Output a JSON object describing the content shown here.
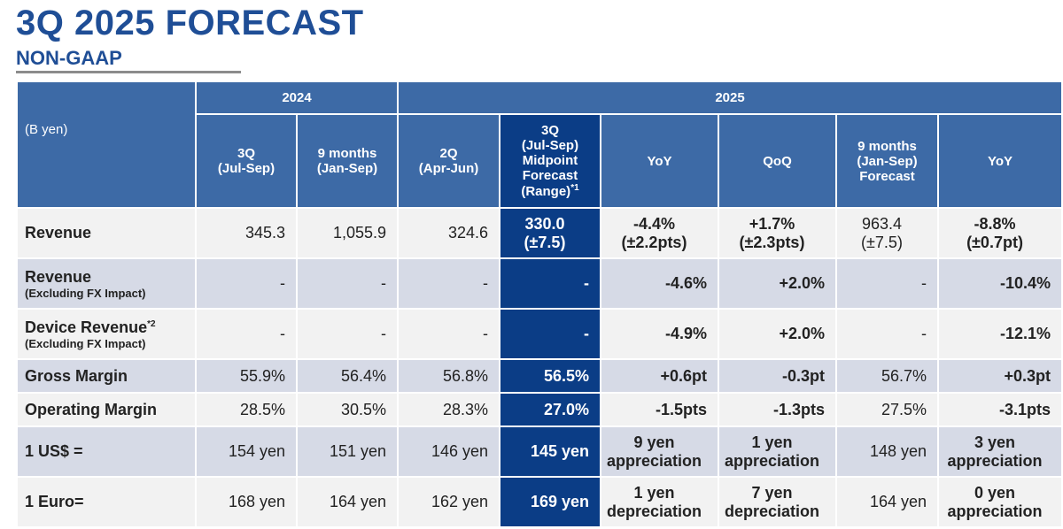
{
  "title": "3Q 2025 FORECAST",
  "subtitle": "NON-GAAP",
  "table": {
    "unit": "(B yen)",
    "years": [
      "2024",
      "2025"
    ],
    "columns": [
      [
        "3Q",
        "(Jul-Sep)"
      ],
      [
        "9 months",
        "(Jan-Sep)"
      ],
      [
        "2Q",
        "(Apr-Jun)"
      ],
      [
        "3Q",
        "(Jul-Sep)",
        "Midpoint",
        "Forecast",
        "(Range)",
        "*1"
      ],
      [
        "YoY"
      ],
      [
        "QoQ"
      ],
      [
        "9 months",
        "(Jan-Sep)",
        "Forecast"
      ],
      [
        "YoY"
      ]
    ],
    "rows": [
      {
        "label": "Revenue",
        "sublabel": "",
        "footnote": "",
        "values": [
          [
            "345.3"
          ],
          [
            "1,055.9"
          ],
          [
            "324.6"
          ],
          [
            "330.0",
            "(±7.5)"
          ],
          [
            "-4.4%",
            "(±2.2pts)"
          ],
          [
            "+1.7%",
            "(±2.3pts)"
          ],
          [
            "963.4",
            "(±7.5)"
          ],
          [
            "-8.8%",
            "(±0.7pt)"
          ]
        ]
      },
      {
        "label": "Revenue",
        "sublabel": "(Excluding FX Impact)",
        "footnote": "",
        "values": [
          [
            "-"
          ],
          [
            "-"
          ],
          [
            "-"
          ],
          [
            "-"
          ],
          [
            "-4.6%"
          ],
          [
            "+2.0%"
          ],
          [
            "-"
          ],
          [
            "-10.4%"
          ]
        ]
      },
      {
        "label": "Device Revenue",
        "sublabel": "(Excluding FX Impact)",
        "footnote": "*2",
        "values": [
          [
            "-"
          ],
          [
            "-"
          ],
          [
            "-"
          ],
          [
            "-"
          ],
          [
            "-4.9%"
          ],
          [
            "+2.0%"
          ],
          [
            "-"
          ],
          [
            "-12.1%"
          ]
        ]
      },
      {
        "label": "Gross Margin",
        "sublabel": "",
        "footnote": "",
        "values": [
          [
            "55.9%"
          ],
          [
            "56.4%"
          ],
          [
            "56.8%"
          ],
          [
            "56.5%"
          ],
          [
            "+0.6pt"
          ],
          [
            "-0.3pt"
          ],
          [
            "56.7%"
          ],
          [
            "+0.3pt"
          ]
        ]
      },
      {
        "label": "Operating Margin",
        "sublabel": "",
        "footnote": "",
        "values": [
          [
            "28.5%"
          ],
          [
            "30.5%"
          ],
          [
            "28.3%"
          ],
          [
            "27.0%"
          ],
          [
            "-1.5pts"
          ],
          [
            "-1.3pts"
          ],
          [
            "27.5%"
          ],
          [
            "-3.1pts"
          ]
        ]
      },
      {
        "label": "1 US$ =",
        "sublabel": "",
        "footnote": "",
        "values": [
          [
            "154 yen"
          ],
          [
            "151 yen"
          ],
          [
            "146 yen"
          ],
          [
            "145 yen"
          ],
          [
            "9 yen",
            "appreciation"
          ],
          [
            "1 yen",
            "appreciation"
          ],
          [
            "148 yen"
          ],
          [
            "3 yen",
            "appreciation"
          ]
        ]
      },
      {
        "label": "1 Euro=",
        "sublabel": "",
        "footnote": "",
        "values": [
          [
            "168 yen"
          ],
          [
            "164 yen"
          ],
          [
            "162 yen"
          ],
          [
            "169 yen"
          ],
          [
            "1 yen",
            "depreciation"
          ],
          [
            "7 yen",
            "depreciation"
          ],
          [
            "164 yen"
          ],
          [
            "0 yen",
            "appreciation"
          ]
        ]
      }
    ]
  },
  "colors": {
    "title": "#1f4e96",
    "header": "#3d6aa6",
    "highlight": "#0b3d86",
    "row_light": "#f2f2f2",
    "row_dark": "#d6dae6"
  }
}
